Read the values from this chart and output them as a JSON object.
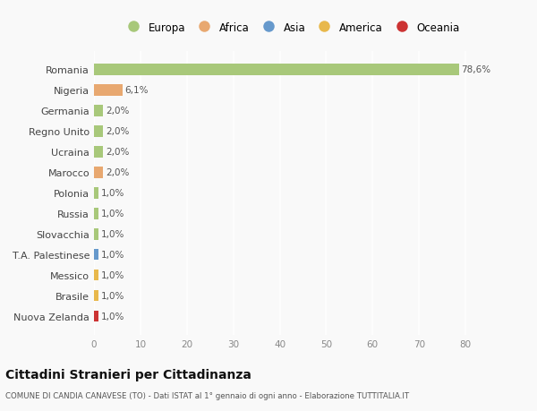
{
  "categories": [
    "Nuova Zelanda",
    "Brasile",
    "Messico",
    "T.A. Palestinese",
    "Slovacchia",
    "Russia",
    "Polonia",
    "Marocco",
    "Ucraina",
    "Regno Unito",
    "Germania",
    "Nigeria",
    "Romania"
  ],
  "values": [
    1.0,
    1.0,
    1.0,
    1.0,
    1.0,
    1.0,
    1.0,
    2.0,
    2.0,
    2.0,
    2.0,
    6.1,
    78.6
  ],
  "labels": [
    "1,0%",
    "1,0%",
    "1,0%",
    "1,0%",
    "1,0%",
    "1,0%",
    "1,0%",
    "2,0%",
    "2,0%",
    "2,0%",
    "2,0%",
    "6,1%",
    "78,6%"
  ],
  "bar_colors": [
    "#cc3333",
    "#e8b84b",
    "#e8b84b",
    "#6699cc",
    "#a8c87a",
    "#a8c87a",
    "#a8c87a",
    "#e8a870",
    "#a8c87a",
    "#a8c87a",
    "#a8c87a",
    "#e8a870",
    "#a8c87a"
  ],
  "legend_labels": [
    "Europa",
    "Africa",
    "Asia",
    "America",
    "Oceania"
  ],
  "legend_colors": [
    "#a8c87a",
    "#e8a870",
    "#6699cc",
    "#e8b84b",
    "#cc3333"
  ],
  "title": "Cittadini Stranieri per Cittadinanza",
  "subtitle": "COMUNE DI CANDIA CANAVESE (TO) - Dati ISTAT al 1° gennaio di ogni anno - Elaborazione TUTTITALIA.IT",
  "xlim": [
    0,
    85
  ],
  "xticks": [
    0,
    10,
    20,
    30,
    40,
    50,
    60,
    70,
    80
  ],
  "background_color": "#f9f9f9",
  "grid_color": "#ffffff",
  "bar_height": 0.55
}
